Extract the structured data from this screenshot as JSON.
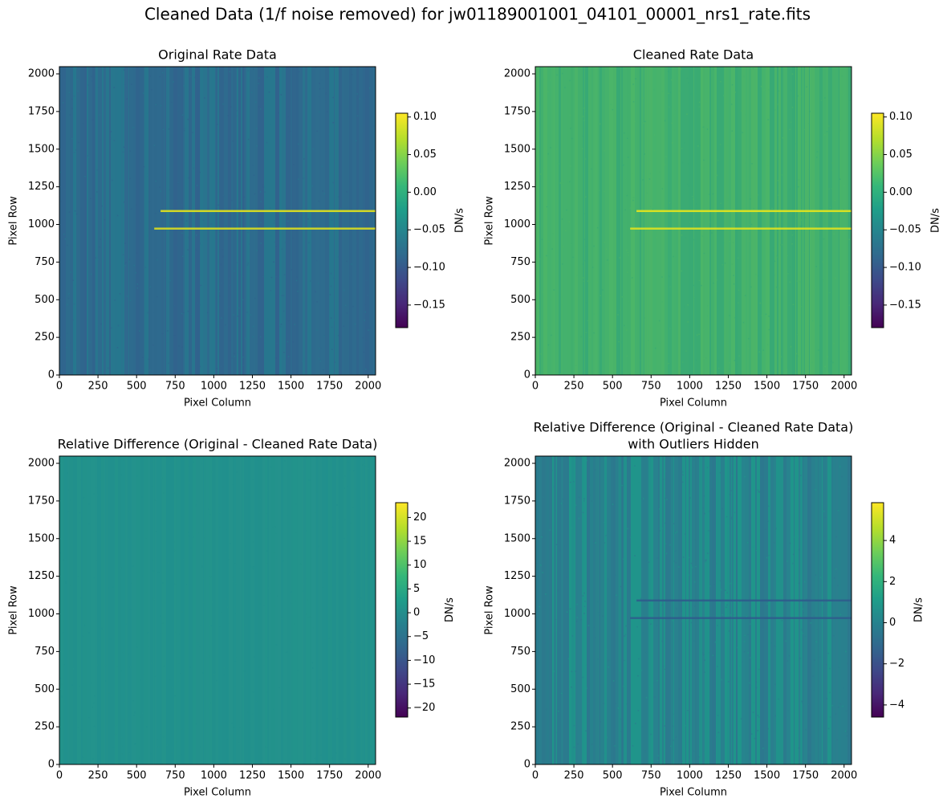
{
  "title": "Cleaned Data (1/f noise removed) for jw01189001001_04101_00001_nrs1_rate.fits",
  "chart_data": [
    {
      "type": "image",
      "title": "Original Rate Data",
      "xlabel": "Pixel Column",
      "ylabel": "Pixel Row",
      "xlim": [
        0,
        2048
      ],
      "ylim": [
        0,
        2048
      ],
      "xticks": [
        0,
        250,
        500,
        750,
        1000,
        1250,
        1500,
        1750,
        2000
      ],
      "yticks": [
        0,
        250,
        500,
        750,
        1000,
        1250,
        1500,
        1750,
        2000
      ],
      "colorbar": {
        "label": "DN/s",
        "cmap": "viridis",
        "clim": [
          -0.18,
          0.105
        ],
        "ticks": [
          {
            "value": -0.15,
            "label": "−0.15"
          },
          {
            "value": -0.1,
            "label": "−0.10"
          },
          {
            "value": -0.05,
            "label": "−0.05"
          },
          {
            "value": 0,
            "label": "0.00"
          },
          0.05,
          {
            "value": 0.1,
            "label": "0.10"
          }
        ]
      }
    },
    {
      "type": "image",
      "title": "Cleaned Rate Data",
      "xlabel": "Pixel Column",
      "ylabel": "Pixel Row",
      "xlim": [
        0,
        2048
      ],
      "ylim": [
        0,
        2048
      ],
      "xticks": [
        0,
        250,
        500,
        750,
        1000,
        1250,
        1500,
        1750,
        2000
      ],
      "yticks": [
        0,
        250,
        500,
        750,
        1000,
        1250,
        1500,
        1750,
        2000
      ],
      "colorbar": {
        "label": "DN/s",
        "cmap": "viridis",
        "clim": [
          -0.18,
          0.105
        ],
        "ticks": [
          {
            "value": -0.15,
            "label": "−0.15"
          },
          {
            "value": -0.1,
            "label": "−0.10"
          },
          {
            "value": -0.05,
            "label": "−0.05"
          },
          {
            "value": 0,
            "label": "0.00"
          },
          0.05,
          {
            "value": 0.1,
            "label": "0.10"
          }
        ]
      }
    },
    {
      "type": "image",
      "title": "Relative Difference (Original - Cleaned Rate Data)",
      "xlabel": "Pixel Column",
      "ylabel": "Pixel Row",
      "xlim": [
        0,
        2048
      ],
      "ylim": [
        0,
        2048
      ],
      "xticks": [
        0,
        250,
        500,
        750,
        1000,
        1250,
        1500,
        1750,
        2000
      ],
      "yticks": [
        0,
        250,
        500,
        750,
        1000,
        1250,
        1500,
        1750,
        2000
      ],
      "colorbar": {
        "label": "DN/s",
        "cmap": "viridis",
        "clim": [
          -21.9,
          23.1
        ],
        "ticks": [
          {
            "value": -20,
            "label": "−20"
          },
          {
            "value": -15,
            "label": "−15"
          },
          {
            "value": -10,
            "label": "−10"
          },
          {
            "value": -5,
            "label": "−5"
          },
          0,
          5,
          10,
          15,
          20
        ]
      }
    },
    {
      "type": "image",
      "title": [
        "Relative Difference (Original - Cleaned Rate Data)",
        "with Outliers Hidden"
      ],
      "xlabel": "Pixel Column",
      "ylabel": "Pixel Row",
      "xlim": [
        0,
        2048
      ],
      "ylim": [
        0,
        2048
      ],
      "xticks": [
        0,
        250,
        500,
        750,
        1000,
        1250,
        1500,
        1750,
        2000
      ],
      "yticks": [
        0,
        250,
        500,
        750,
        1000,
        1250,
        1500,
        1750,
        2000
      ],
      "colorbar": {
        "label": "DN/s",
        "cmap": "viridis",
        "clim": [
          -4.59,
          5.84
        ],
        "ticks": [
          {
            "value": -4,
            "label": "−4"
          },
          {
            "value": -2,
            "label": "−2"
          },
          0,
          2,
          4
        ]
      }
    }
  ]
}
